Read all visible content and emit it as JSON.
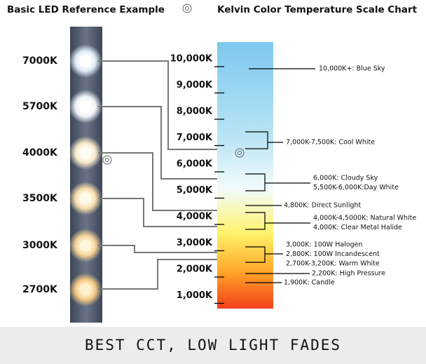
{
  "header": {
    "left_title": "Basic LED Reference Example",
    "right_title": "Kelvin Color Temperature Scale Chart"
  },
  "leds": [
    "7000K",
    "5700K",
    "4000K",
    "3500K",
    "3000K",
    "2700K"
  ],
  "scale_ticks": [
    "10,000K",
    "9,000K",
    "8,000K",
    "7,000K",
    "6,000K",
    "5,000K",
    "4,000K",
    "3,000K",
    "2,000K",
    "1,000K"
  ],
  "annotations": [
    [
      "10,000K+: Blue Sky"
    ],
    [
      "7,000K-7,500K: Cool White"
    ],
    [
      "6,000K: Cloudy Sky",
      "5,500K-6,000K:Day White"
    ],
    [
      "4,800K: Direct Sunlight"
    ],
    [
      "4,000K-4,5000K: Natural White",
      "4,000K: Clear Metal Halide"
    ],
    [
      "3,000K: 100W Halogen",
      "2,800K: 100W Incandescent",
      "2,700K-3,200K: Warm White"
    ],
    [
      "2,200K: High Pressure"
    ],
    [
      "1,900K: Candle"
    ]
  ],
  "footer": "BEST CCT, LOW LIGHT FADES"
}
